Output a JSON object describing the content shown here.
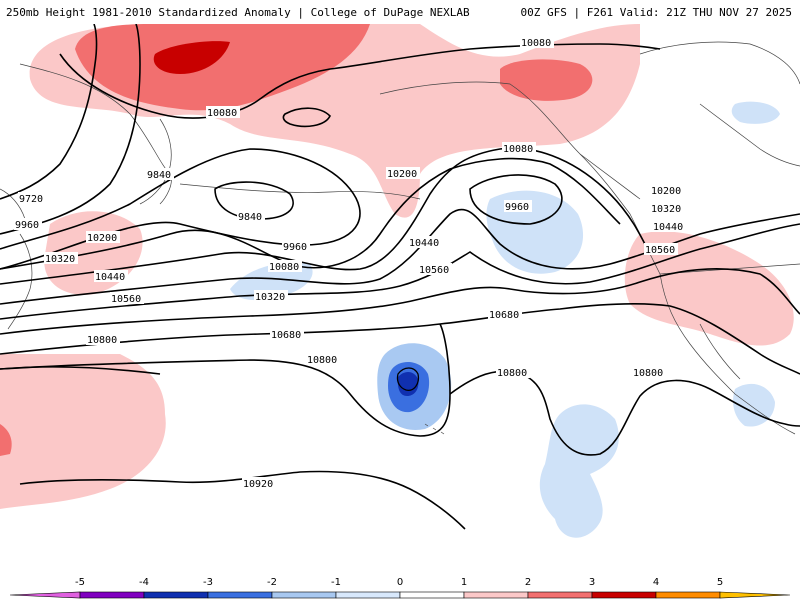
{
  "header": {
    "title_left": "250mb Height 1981-2010 Standardized Anomaly | College of DuPage NEXLAB",
    "title_right": "00Z GFS | F261 Valid: 21Z THU NOV 27 2025"
  },
  "contour_labels": {
    "l9720": "9720",
    "l9840a": "9840",
    "l9840b": "9840",
    "l9960a": "9960",
    "l9960b": "9960",
    "l9960c": "9960",
    "l10080a": "10080",
    "l10080b": "10080",
    "l10080c": "10080",
    "l10080d": "10080",
    "l10200a": "10200",
    "l10200b": "10200",
    "l10200c": "10200",
    "l10320a": "10320",
    "l10320b": "10320",
    "l10320c": "10320",
    "l10440a": "10440",
    "l10440b": "10440",
    "l10440c": "10440",
    "l10560a": "10560",
    "l10560b": "10560",
    "l10560c": "10560",
    "l10680a": "10680",
    "l10680b": "10680",
    "l10800a": "10800",
    "l10800b": "10800",
    "l10800c": "10800",
    "l10800d": "10800",
    "l10920": "10920"
  },
  "legend": {
    "ticks": [
      "-5",
      "-4",
      "-3",
      "-2",
      "-1",
      "0",
      "1",
      "2",
      "3",
      "4",
      "5"
    ],
    "colors": [
      "#e060e0",
      "#8000c0",
      "#1030b0",
      "#3a6fe0",
      "#a8c8f0",
      "#d8e8fb",
      "#ffffff",
      "#fbc8c8",
      "#f27070",
      "#c80000",
      "#ff8c00",
      "#ffc000"
    ]
  },
  "palette": {
    "pos1": "#fbc8c8",
    "pos2": "#f26f6f",
    "pos3": "#c80000",
    "neg1": "#cfe2f8",
    "neg2": "#a9c9f2",
    "neg3": "#3a6fe0",
    "neg4": "#1030b0"
  }
}
